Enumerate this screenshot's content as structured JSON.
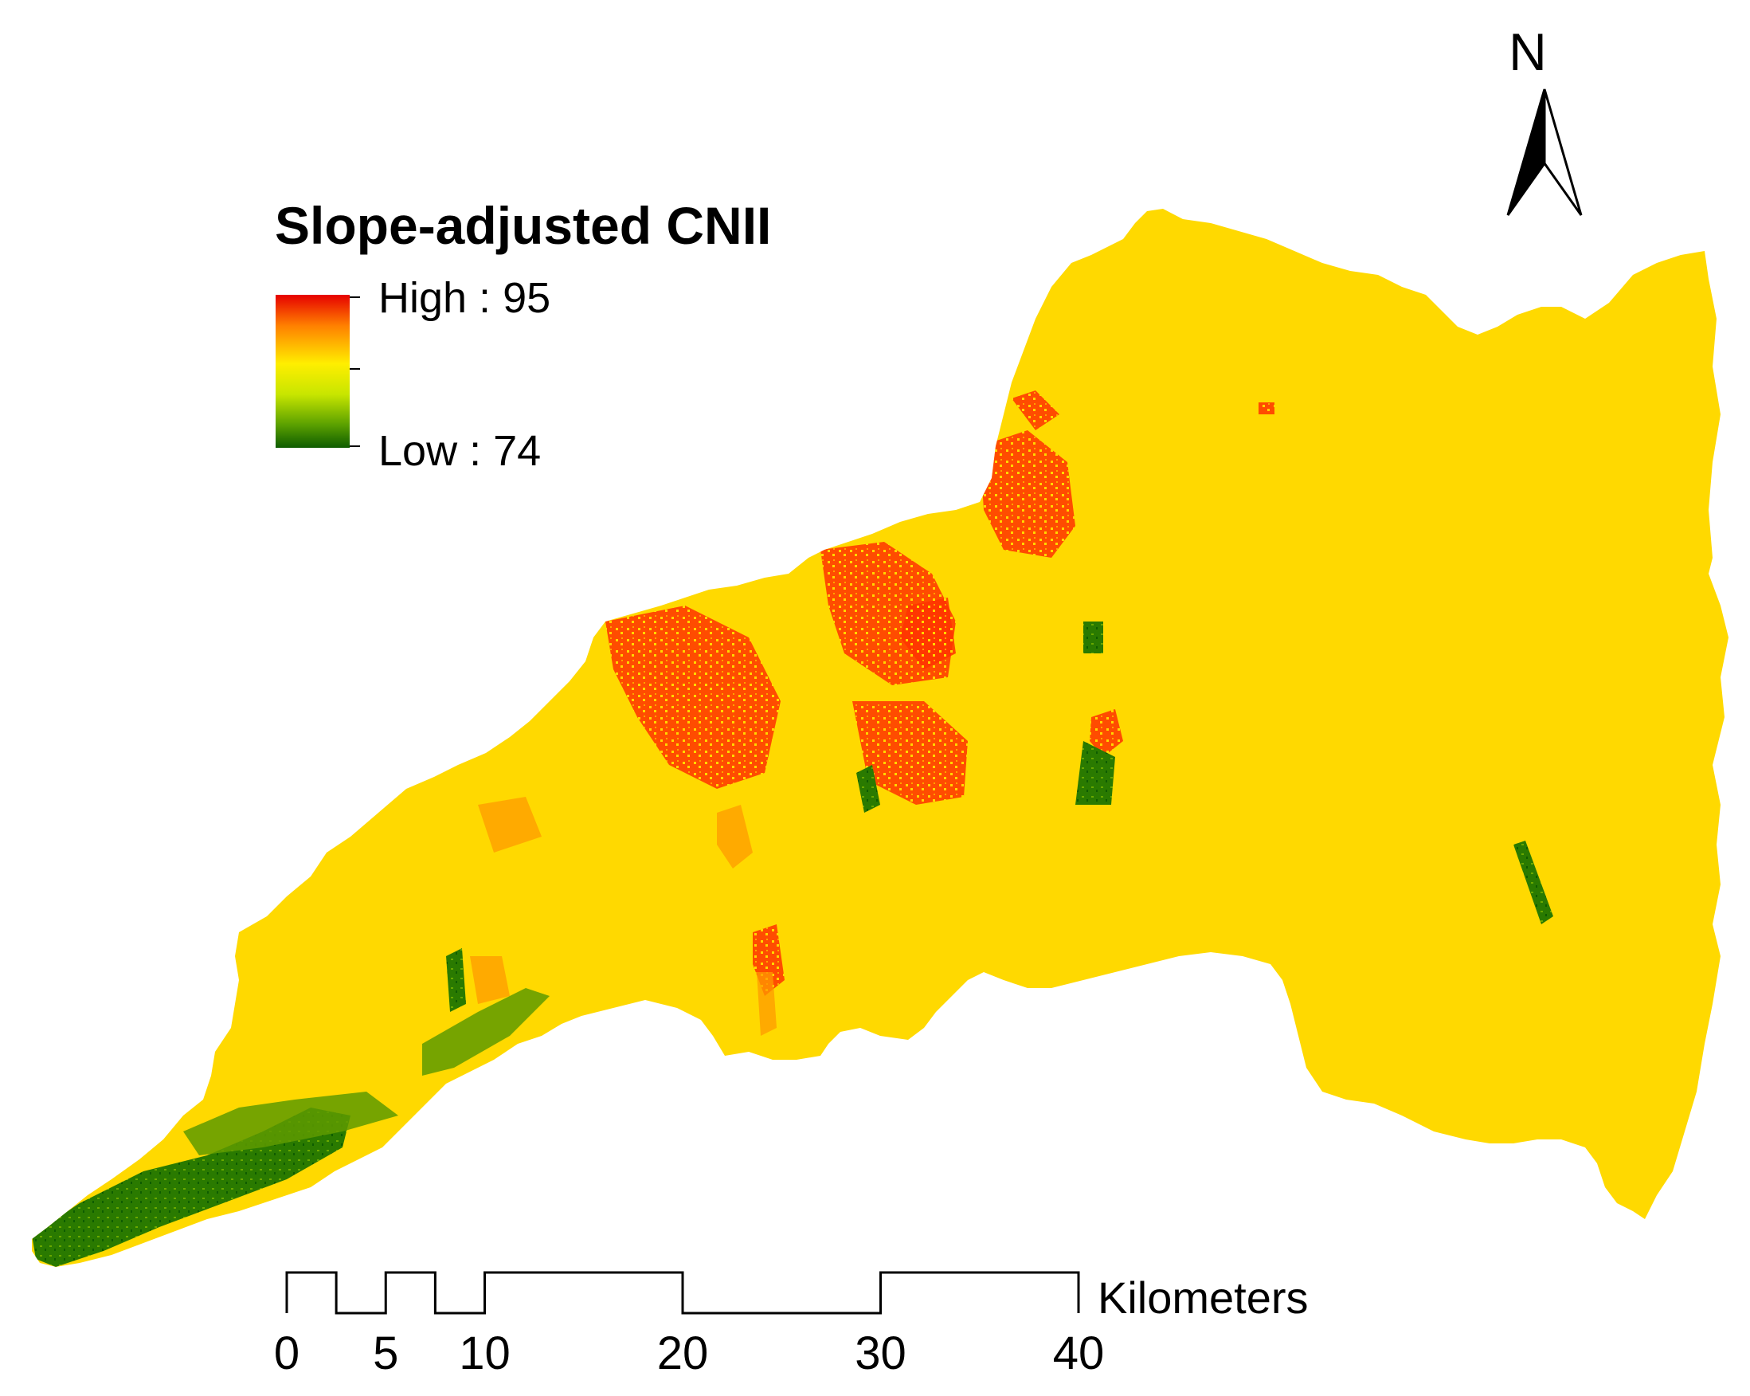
{
  "legend": {
    "title": "Slope-adjusted CNII",
    "high_label": "High : 95",
    "low_label": "Low : 74",
    "ramp_colors": [
      "#e60000",
      "#ff7f00",
      "#ffee00",
      "#c8e600",
      "#5aa000",
      "#0e5c00"
    ]
  },
  "north_arrow": {
    "letter": "N"
  },
  "scale_bar": {
    "unit": "Kilometers",
    "ticks": [
      0,
      5,
      10,
      20,
      30,
      40
    ]
  },
  "colors": {
    "base": "#ffd900",
    "high": "#ff3300",
    "mid": "#ff9900",
    "low": "#1f6b00",
    "low_light": "#5e9a00"
  }
}
